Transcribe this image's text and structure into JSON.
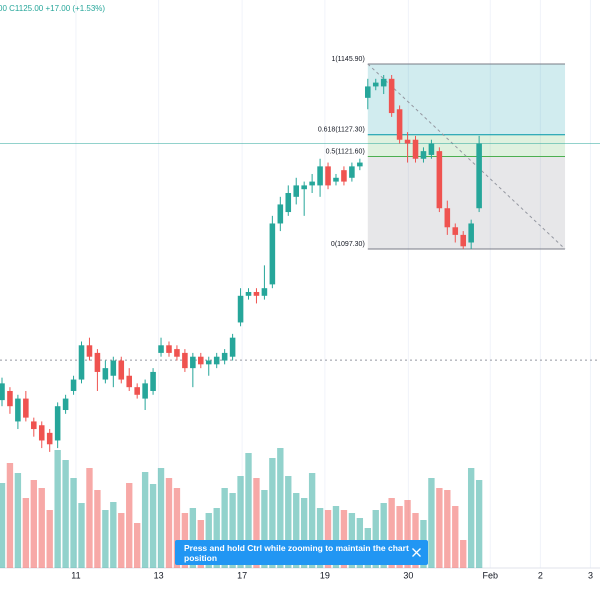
{
  "chart_data": {
    "type": "candlestick",
    "header": "00 C1125.00 +17.00 (+1.53%)",
    "x": [
      0,
      1,
      2,
      3,
      4,
      5,
      6,
      7,
      8,
      9,
      10,
      11,
      12,
      13,
      14,
      15,
      16,
      17,
      18,
      19,
      20,
      21,
      22,
      23,
      24,
      25,
      26,
      27,
      28,
      29,
      30,
      31,
      32,
      33,
      34,
      35,
      36,
      37,
      38,
      39,
      40,
      41,
      42,
      43,
      44,
      45,
      46,
      47,
      48,
      49,
      50,
      51,
      52,
      53,
      54,
      55,
      56,
      57,
      58,
      59,
      60
    ],
    "open": [
      1057.6,
      1060,
      1052,
      1058,
      1052,
      1051,
      1049,
      1047,
      1055,
      1060,
      1063,
      1072,
      1070,
      1063,
      1064,
      1068,
      1064,
      1061,
      1058,
      1060,
      1070,
      1072,
      1071,
      1070,
      1066,
      1069,
      1067,
      1067,
      1068,
      1069,
      1078,
      1085,
      1086,
      1085,
      1088,
      1104,
      1107,
      1111,
      1113,
      1114,
      1114,
      1119,
      1115,
      1118,
      1116,
      1119,
      1137,
      1140,
      1140,
      1142,
      1134,
      1126,
      1126,
      1121,
      1122,
      1123,
      1108,
      1103,
      1101,
      1099,
      1108
    ],
    "high": [
      1063.5,
      1061,
      1059,
      1060,
      1053,
      1052,
      1050,
      1057,
      1059,
      1064,
      1073,
      1074,
      1071,
      1068,
      1069,
      1069,
      1066,
      1062,
      1063,
      1066,
      1074,
      1073,
      1072,
      1071,
      1070,
      1070,
      1069,
      1070,
      1071,
      1075,
      1087,
      1087,
      1087,
      1093,
      1106,
      1111,
      1114,
      1116,
      1115,
      1117,
      1121,
      1120,
      1117,
      1119,
      1120,
      1121,
      1142,
      1142,
      1143,
      1143,
      1135,
      1128,
      1127,
      1124,
      1126,
      1124,
      1110,
      1104,
      1102,
      1105,
      1127
    ],
    "low": [
      1056,
      1054,
      1050,
      1052,
      1048,
      1045,
      1044,
      1045,
      1054,
      1059,
      1062,
      1068,
      1060,
      1062,
      1061,
      1062,
      1060,
      1058,
      1055,
      1059,
      1069,
      1069,
      1068,
      1065,
      1061,
      1066,
      1064,
      1066,
      1067,
      1068,
      1077,
      1084,
      1083,
      1084,
      1087,
      1102,
      1106,
      1109,
      1106,
      1112,
      1111,
      1113,
      1114,
      1114,
      1115,
      1118,
      1134,
      1139,
      1138,
      1132,
      1125,
      1120,
      1120,
      1120,
      1121,
      1107,
      1101,
      1099,
      1097.3,
      1097.3,
      1107
    ],
    "close": [
      1062,
      1056,
      1058,
      1053,
      1050,
      1047,
      1046,
      1056,
      1058,
      1063,
      1072,
      1069,
      1065,
      1066,
      1068,
      1063,
      1061,
      1059,
      1062,
      1065,
      1072,
      1070,
      1069,
      1066,
      1069,
      1067,
      1068,
      1069,
      1070,
      1074,
      1085,
      1086,
      1085,
      1087,
      1104,
      1109,
      1112,
      1114,
      1114,
      1115,
      1119,
      1114,
      1116,
      1115,
      1119,
      1120,
      1140,
      1141,
      1142,
      1133,
      1126,
      1125,
      1121,
      1123,
      1125,
      1108,
      1103,
      1101,
      1098,
      1104,
      1125
    ],
    "volume": [
      85,
      105,
      95,
      70,
      88,
      80,
      58,
      118,
      108,
      90,
      65,
      100,
      78,
      58,
      66,
      55,
      85,
      45,
      96,
      84,
      100,
      90,
      80,
      55,
      60,
      48,
      55,
      60,
      80,
      75,
      92,
      115,
      90,
      78,
      110,
      120,
      92,
      75,
      70,
      95,
      60,
      58,
      62,
      58,
      55,
      50,
      40,
      58,
      65,
      70,
      62,
      68,
      55,
      48,
      90,
      80,
      78,
      62,
      28,
      100,
      88
    ],
    "up_color": "#26a69a",
    "down_color": "#ef5350",
    "xlim": [
      -0.25,
      75.2
    ],
    "ylim": [
      1013.5,
      1162.7
    ],
    "volume_lim": [
      0,
      130
    ],
    "xticks": [
      {
        "value": 9.3,
        "label": "11"
      },
      {
        "value": 19.7,
        "label": "13"
      },
      {
        "value": 30.2,
        "label": "17"
      },
      {
        "value": 40.6,
        "label": "19"
      },
      {
        "value": 51.1,
        "label": "30"
      },
      {
        "value": 61.4,
        "label": "Feb"
      },
      {
        "value": 67.7,
        "label": "2"
      },
      {
        "value": 74,
        "label": "3"
      }
    ],
    "grid": true,
    "last_price": 1125.0,
    "price_line": 1068.1,
    "fib": {
      "start": 46,
      "end": 70.8,
      "levels": [
        {
          "value": 1145.9,
          "label": "1(1145.90)",
          "color": "#787b86"
        },
        {
          "value": 1127.3,
          "label": "0.618(1127.30)",
          "color": "#0097a7"
        },
        {
          "value": 1121.6,
          "label": "0.5(1121.60)",
          "color": "#4caf50"
        },
        {
          "value": 1097.3,
          "label": "0(1097.30)",
          "color": "#787b86"
        }
      ]
    },
    "notice": "Press and hold Ctrl while zooming to maintain the chart position"
  }
}
